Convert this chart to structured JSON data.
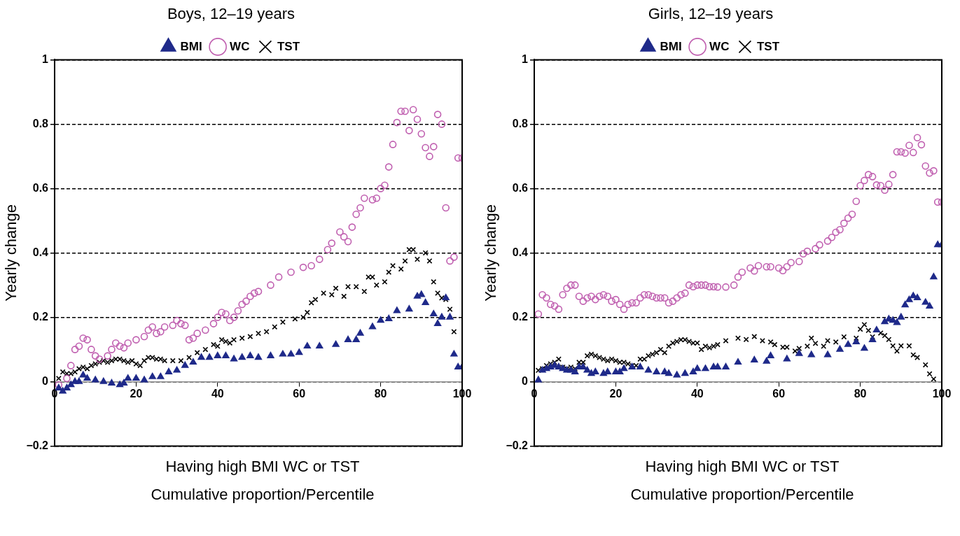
{
  "chart_data": [
    {
      "type": "scatter",
      "title": "Boys, 12–19 years",
      "xlabel": "Having high BMI WC or TST",
      "ylabel": "Yearly change",
      "annotations": [
        "Cumulative proportion/Percentile"
      ],
      "xlim": [
        0,
        100
      ],
      "xticks": [
        0,
        20,
        40,
        60,
        80,
        100
      ],
      "ylim": [
        -0.2,
        1
      ],
      "yticks": [
        {
          "value": -0.2,
          "label": "−0.2"
        },
        0,
        0.2,
        0.4,
        0.6,
        0.8,
        1
      ],
      "grid": "y",
      "legend": "top",
      "series": [
        {
          "name": "BMI",
          "color": "#1f2a8a",
          "marker": "triangle",
          "x": [
            1,
            2,
            3,
            4,
            5,
            6,
            7,
            8,
            10,
            12,
            14,
            16,
            17,
            18,
            20,
            22,
            24,
            26,
            28,
            30,
            32,
            34,
            36,
            38,
            40,
            42,
            44,
            46,
            48,
            50,
            53,
            56,
            58,
            60,
            62,
            65,
            69,
            72,
            74,
            75,
            78,
            80,
            82,
            84,
            87,
            89,
            90,
            91,
            93,
            94,
            95,
            96,
            97,
            98,
            99,
            100
          ],
          "values": [
            -0.02,
            -0.03,
            -0.02,
            -0.01,
            0,
            0,
            0.02,
            0.01,
            0.005,
            0,
            -0.005,
            -0.01,
            -0.005,
            0.01,
            0.01,
            0.005,
            0.015,
            0.015,
            0.03,
            0.035,
            0.05,
            0.06,
            0.075,
            0.075,
            0.08,
            0.08,
            0.07,
            0.075,
            0.08,
            0.075,
            0.08,
            0.085,
            0.085,
            0.09,
            0.11,
            0.11,
            0.115,
            0.13,
            0.13,
            0.15,
            0.17,
            0.19,
            0.195,
            0.22,
            0.225,
            0.265,
            0.27,
            0.245,
            0.21,
            0.18,
            0.2,
            0.26,
            0.2,
            0.085,
            0.045,
            0.045
          ]
        },
        {
          "name": "WC",
          "color": "#c060b0",
          "marker": "circle",
          "x": [
            1,
            3,
            4,
            5,
            6,
            7,
            8,
            9,
            10,
            11,
            13,
            14,
            15,
            16,
            17,
            18,
            20,
            22,
            23,
            24,
            25,
            26,
            27,
            29,
            30,
            31,
            32,
            33,
            34,
            35,
            37,
            39,
            40,
            41,
            42,
            43,
            44,
            45,
            46,
            47,
            48,
            49,
            50,
            53,
            55,
            58,
            61,
            63,
            65,
            67,
            68,
            70,
            71,
            72,
            73,
            74,
            75,
            76,
            78,
            79,
            80,
            81,
            82,
            83,
            84,
            85,
            86,
            87,
            88,
            89,
            90,
            91,
            92,
            93,
            94,
            95,
            96,
            97,
            98,
            99,
            100
          ],
          "values": [
            -0.01,
            0.01,
            0.05,
            0.1,
            0.11,
            0.135,
            0.13,
            0.1,
            0.08,
            0.07,
            0.08,
            0.1,
            0.12,
            0.11,
            0.105,
            0.12,
            0.13,
            0.14,
            0.16,
            0.17,
            0.15,
            0.155,
            0.17,
            0.175,
            0.19,
            0.18,
            0.175,
            0.13,
            0.135,
            0.15,
            0.16,
            0.18,
            0.2,
            0.215,
            0.21,
            0.19,
            0.2,
            0.22,
            0.24,
            0.25,
            0.265,
            0.275,
            0.28,
            0.3,
            0.325,
            0.34,
            0.355,
            0.36,
            0.38,
            0.41,
            0.43,
            0.465,
            0.45,
            0.435,
            0.48,
            0.52,
            0.54,
            0.57,
            0.565,
            0.57,
            0.6,
            0.61,
            0.667,
            0.737,
            0.805,
            0.84,
            0.84,
            0.78,
            0.845,
            0.815,
            0.77,
            0.727,
            0.7,
            0.73,
            0.83,
            0.8,
            0.54,
            0.375,
            0.387,
            0.695,
            0.695
          ]
        },
        {
          "name": "TST",
          "color": "#000000",
          "marker": "cross",
          "x": [
            1,
            2,
            3,
            4,
            5,
            6,
            7,
            8,
            9,
            10,
            11,
            12,
            13,
            14,
            15,
            16,
            17,
            18,
            19,
            20,
            21,
            22,
            23,
            24,
            25,
            26,
            27,
            29,
            31,
            33,
            35,
            37,
            39,
            40,
            41,
            42,
            43,
            44,
            46,
            48,
            50,
            52,
            54,
            56,
            59,
            61,
            62,
            63,
            64,
            66,
            68,
            69,
            71,
            72,
            74,
            76,
            77,
            78,
            79,
            81,
            82,
            83,
            85,
            86,
            87,
            88,
            89,
            91,
            92,
            93,
            94,
            95,
            96,
            97,
            98
          ],
          "values": [
            0.01,
            0.03,
            0.025,
            0.025,
            0.03,
            0.04,
            0.045,
            0.04,
            0.05,
            0.055,
            0.06,
            0.065,
            0.06,
            0.065,
            0.07,
            0.07,
            0.065,
            0.06,
            0.065,
            0.055,
            0.05,
            0.065,
            0.075,
            0.075,
            0.07,
            0.07,
            0.065,
            0.065,
            0.065,
            0.075,
            0.09,
            0.1,
            0.115,
            0.11,
            0.13,
            0.125,
            0.12,
            0.13,
            0.135,
            0.14,
            0.15,
            0.155,
            0.17,
            0.185,
            0.195,
            0.2,
            0.215,
            0.245,
            0.255,
            0.275,
            0.27,
            0.29,
            0.265,
            0.295,
            0.295,
            0.28,
            0.325,
            0.325,
            0.3,
            0.31,
            0.34,
            0.36,
            0.35,
            0.375,
            0.41,
            0.41,
            0.38,
            0.4,
            0.375,
            0.31,
            0.275,
            0.26,
            0.255,
            0.225,
            0.155
          ]
        }
      ]
    },
    {
      "type": "scatter",
      "title": "Girls, 12–19 years",
      "xlabel": "Having high BMI WC or TST",
      "ylabel": "Yearly change",
      "annotations": [
        "Cumulative proportion/Percentile"
      ],
      "xlim": [
        0,
        100
      ],
      "xticks": [
        0,
        20,
        40,
        60,
        80,
        100
      ],
      "ylim": [
        -0.2,
        1
      ],
      "yticks": [
        {
          "value": -0.2,
          "label": "−0.2"
        },
        0,
        0.2,
        0.4,
        0.6,
        0.8,
        1
      ],
      "grid": "y",
      "legend": "top",
      "series": [
        {
          "name": "BMI",
          "color": "#1f2a8a",
          "marker": "triangle",
          "x": [
            1,
            2,
            3,
            4,
            5,
            6,
            7,
            8,
            9,
            10,
            11,
            12,
            13,
            14,
            15,
            17,
            18,
            20,
            21,
            22,
            24,
            26,
            28,
            30,
            32,
            33,
            35,
            37,
            39,
            40,
            42,
            44,
            45,
            47,
            50,
            54,
            57,
            58,
            62,
            65,
            68,
            72,
            75,
            77,
            79,
            81,
            83,
            84,
            86,
            87,
            88,
            89,
            90,
            91,
            92,
            93,
            94,
            96,
            97,
            98,
            99,
            100
          ],
          "values": [
            0.005,
            0.035,
            0.04,
            0.045,
            0.05,
            0.045,
            0.04,
            0.035,
            0.035,
            0.03,
            0.045,
            0.045,
            0.035,
            0.025,
            0.03,
            0.025,
            0.03,
            0.03,
            0.03,
            0.04,
            0.045,
            0.045,
            0.035,
            0.03,
            0.03,
            0.025,
            0.02,
            0.025,
            0.03,
            0.04,
            0.04,
            0.045,
            0.045,
            0.045,
            0.06,
            0.067,
            0.063,
            0.08,
            0.07,
            0.087,
            0.083,
            0.083,
            0.1,
            0.115,
            0.123,
            0.103,
            0.13,
            0.16,
            0.186,
            0.194,
            0.19,
            0.183,
            0.2,
            0.238,
            0.254,
            0.266,
            0.26,
            0.246,
            0.234,
            0.325,
            0.425,
            0.425
          ]
        },
        {
          "name": "WC",
          "color": "#c060b0",
          "marker": "circle",
          "x": [
            1,
            2,
            3,
            4,
            5,
            6,
            7,
            8,
            9,
            10,
            11,
            12,
            13,
            14,
            15,
            16,
            17,
            18,
            19,
            20,
            21,
            22,
            23,
            24,
            25,
            26,
            27,
            28,
            29,
            30,
            31,
            32,
            33,
            34,
            35,
            36,
            37,
            38,
            39,
            40,
            41,
            42,
            43,
            44,
            45,
            47,
            49,
            50,
            51,
            53,
            54,
            55,
            57,
            58,
            60,
            61,
            62,
            63,
            65,
            66,
            67,
            69,
            70,
            72,
            73,
            74,
            75,
            76,
            77,
            78,
            79,
            80,
            81,
            82,
            83,
            84,
            85,
            86,
            87,
            88,
            89,
            90,
            91,
            92,
            93,
            94,
            95,
            96,
            97,
            98,
            99,
            100
          ],
          "values": [
            0.21,
            0.27,
            0.26,
            0.24,
            0.235,
            0.225,
            0.27,
            0.29,
            0.3,
            0.3,
            0.265,
            0.25,
            0.26,
            0.265,
            0.255,
            0.265,
            0.27,
            0.265,
            0.25,
            0.255,
            0.24,
            0.225,
            0.24,
            0.245,
            0.245,
            0.26,
            0.27,
            0.27,
            0.265,
            0.26,
            0.26,
            0.26,
            0.245,
            0.25,
            0.26,
            0.27,
            0.275,
            0.3,
            0.295,
            0.3,
            0.3,
            0.3,
            0.295,
            0.295,
            0.294,
            0.294,
            0.3,
            0.325,
            0.34,
            0.353,
            0.344,
            0.36,
            0.357,
            0.357,
            0.353,
            0.345,
            0.357,
            0.37,
            0.373,
            0.397,
            0.405,
            0.413,
            0.425,
            0.437,
            0.448,
            0.464,
            0.472,
            0.492,
            0.508,
            0.52,
            0.56,
            0.609,
            0.625,
            0.643,
            0.637,
            0.611,
            0.609,
            0.595,
            0.613,
            0.643,
            0.714,
            0.714,
            0.71,
            0.734,
            0.712,
            0.758,
            0.736,
            0.67,
            0.648,
            0.655,
            0.558,
            0.558
          ]
        },
        {
          "name": "TST",
          "color": "#000000",
          "marker": "cross",
          "x": [
            1,
            2,
            3,
            4,
            5,
            6,
            7,
            8,
            9,
            10,
            11,
            12,
            13,
            14,
            15,
            16,
            17,
            18,
            19,
            20,
            21,
            22,
            23,
            24,
            25,
            26,
            27,
            28,
            29,
            30,
            31,
            32,
            33,
            34,
            35,
            36,
            37,
            38,
            39,
            40,
            41,
            42,
            43,
            44,
            45,
            47,
            50,
            52,
            54,
            56,
            58,
            59,
            61,
            62,
            64,
            65,
            67,
            68,
            69,
            71,
            72,
            74,
            76,
            79,
            80,
            81,
            82,
            83,
            85,
            86,
            87,
            88,
            89,
            90,
            92,
            93,
            94,
            96,
            97,
            98
          ],
          "values": [
            0.035,
            0.04,
            0.05,
            0.055,
            0.06,
            0.07,
            0.045,
            0.04,
            0.045,
            0.04,
            0.06,
            0.06,
            0.08,
            0.085,
            0.08,
            0.075,
            0.07,
            0.065,
            0.07,
            0.065,
            0.06,
            0.06,
            0.055,
            0.05,
            0.05,
            0.07,
            0.07,
            0.08,
            0.085,
            0.09,
            0.1,
            0.09,
            0.11,
            0.12,
            0.125,
            0.13,
            0.13,
            0.125,
            0.12,
            0.12,
            0.1,
            0.11,
            0.105,
            0.11,
            0.115,
            0.127,
            0.135,
            0.131,
            0.14,
            0.127,
            0.123,
            0.115,
            0.107,
            0.107,
            0.095,
            0.103,
            0.11,
            0.135,
            0.119,
            0.11,
            0.127,
            0.123,
            0.139,
            0.135,
            0.163,
            0.177,
            0.159,
            0.139,
            0.151,
            0.143,
            0.131,
            0.111,
            0.095,
            0.111,
            0.111,
            0.083,
            0.075,
            0.052,
            0.024,
            0.008
          ]
        }
      ]
    }
  ]
}
